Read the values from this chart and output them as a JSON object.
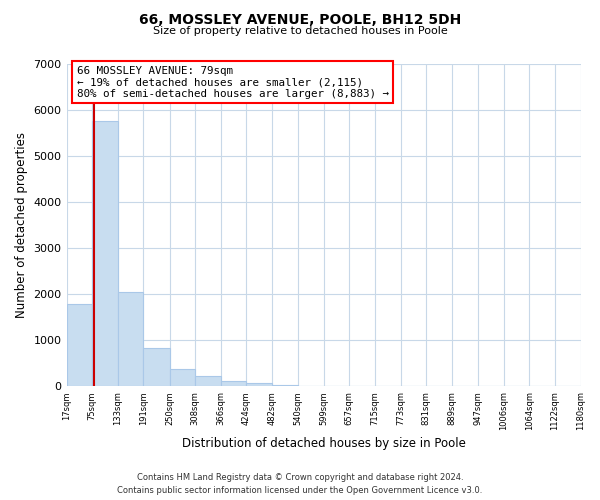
{
  "title": "66, MOSSLEY AVENUE, POOLE, BH12 5DH",
  "subtitle": "Size of property relative to detached houses in Poole",
  "xlabel": "Distribution of detached houses by size in Poole",
  "ylabel": "Number of detached properties",
  "bar_color": "#c8ddf0",
  "bar_edge_color": "#aac8e8",
  "grid_color": "#c8d8e8",
  "vline_color": "#cc0000",
  "vline_x": 79,
  "annotation_lines": [
    "66 MOSSLEY AVENUE: 79sqm",
    "← 19% of detached houses are smaller (2,115)",
    "80% of semi-detached houses are larger (8,883) →"
  ],
  "bins": [
    17,
    75,
    133,
    191,
    250,
    308,
    366,
    424,
    482,
    540,
    599,
    657,
    715,
    773,
    831,
    889,
    947,
    1006,
    1064,
    1122,
    1180
  ],
  "counts": [
    1780,
    5760,
    2050,
    820,
    370,
    230,
    110,
    65,
    35,
    15,
    5,
    0,
    0,
    0,
    0,
    0,
    0,
    0,
    0,
    0
  ],
  "ylim": [
    0,
    7000
  ],
  "yticks": [
    0,
    1000,
    2000,
    3000,
    4000,
    5000,
    6000,
    7000
  ],
  "tick_labels": [
    "17sqm",
    "75sqm",
    "133sqm",
    "191sqm",
    "250sqm",
    "308sqm",
    "366sqm",
    "424sqm",
    "482sqm",
    "540sqm",
    "599sqm",
    "657sqm",
    "715sqm",
    "773sqm",
    "831sqm",
    "889sqm",
    "947sqm",
    "1006sqm",
    "1064sqm",
    "1122sqm",
    "1180sqm"
  ],
  "footer_line1": "Contains HM Land Registry data © Crown copyright and database right 2024.",
  "footer_line2": "Contains public sector information licensed under the Open Government Licence v3.0.",
  "background_color": "#ffffff"
}
